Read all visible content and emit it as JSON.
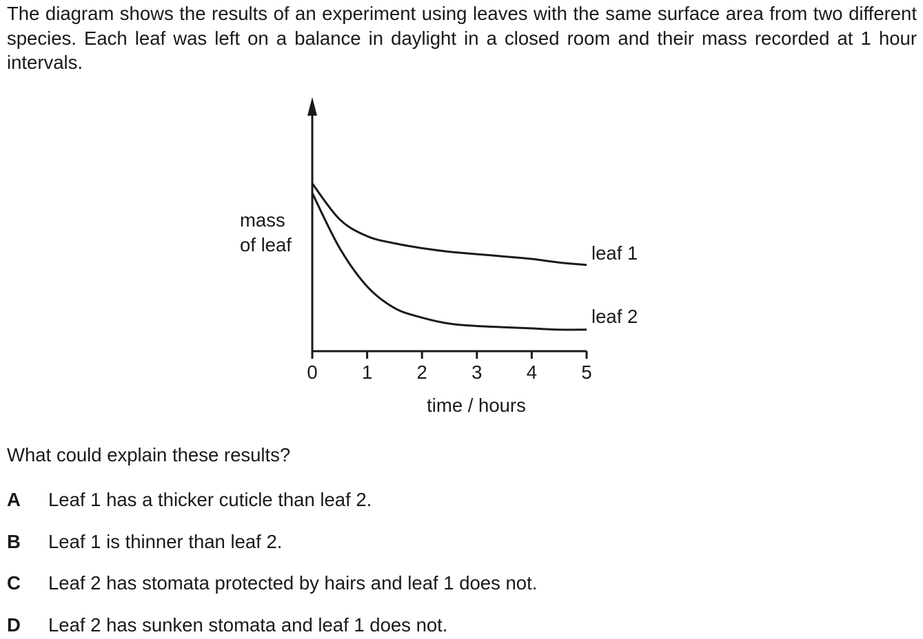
{
  "intro": "The diagram shows the results of an experiment using leaves with the same surface area from two different species. Each leaf was left on a balance in daylight in a closed room and their mass recorded at 1 hour intervals.",
  "chart_data": {
    "type": "line",
    "ylabel": [
      "mass",
      "of leaf"
    ],
    "xlabel": "time / hours",
    "xticks": [
      "0",
      "1",
      "2",
      "3",
      "4",
      "5"
    ],
    "xlim": [
      0,
      5
    ],
    "y_numeric_scale": false,
    "series": [
      {
        "name": "leaf 1",
        "x": [
          0,
          0.5,
          1,
          1.5,
          2,
          2.5,
          3,
          3.5,
          4,
          4.5,
          5
        ],
        "values": [
          0.7,
          0.55,
          0.48,
          0.45,
          0.43,
          0.415,
          0.405,
          0.395,
          0.385,
          0.37,
          0.36
        ]
      },
      {
        "name": "leaf 2",
        "x": [
          0,
          0.5,
          1,
          1.5,
          2,
          2.5,
          3,
          3.5,
          4,
          4.5,
          5
        ],
        "values": [
          0.66,
          0.43,
          0.27,
          0.18,
          0.14,
          0.115,
          0.105,
          0.1,
          0.095,
          0.09,
          0.09
        ]
      }
    ]
  },
  "question": "What could explain these results?",
  "options": [
    {
      "letter": "A",
      "text": "Leaf 1 has a thicker cuticle than leaf 2."
    },
    {
      "letter": "B",
      "text": "Leaf 1 is thinner than leaf 2."
    },
    {
      "letter": "C",
      "text": "Leaf 2 has stomata protected by hairs and leaf 1 does not."
    },
    {
      "letter": "D",
      "text": "Leaf 2 has sunken stomata and leaf 1 does not."
    }
  ]
}
